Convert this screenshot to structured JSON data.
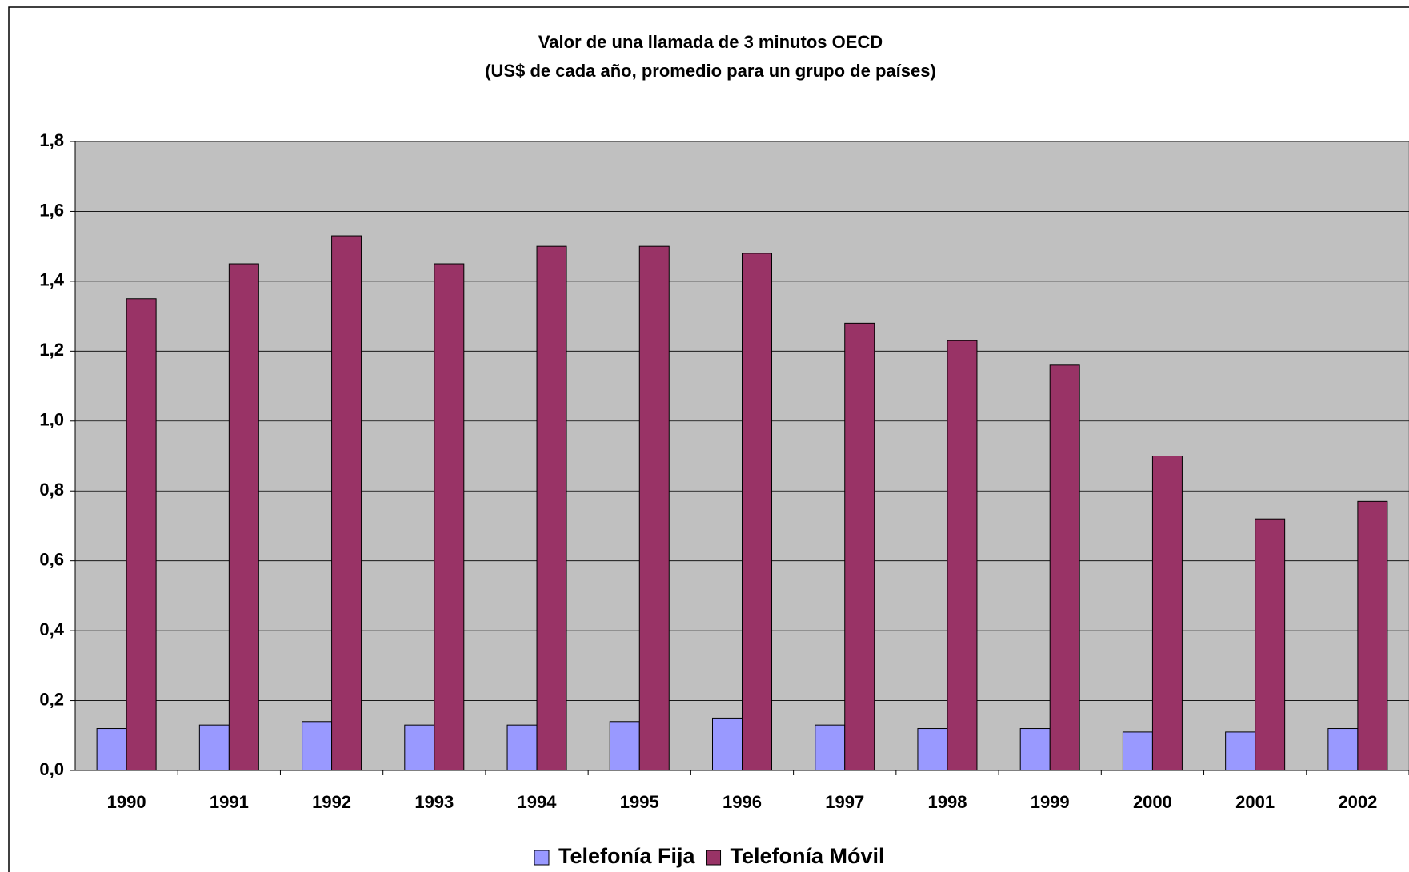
{
  "chart_data": {
    "type": "bar",
    "title": "Valor de una llamada de 3 minutos OECD",
    "subtitle": "(US$ de cada año, promedio para un grupo de países)",
    "categories": [
      "1990",
      "1991",
      "1992",
      "1993",
      "1994",
      "1995",
      "1996",
      "1997",
      "1998",
      "1999",
      "2000",
      "2001",
      "2002"
    ],
    "series": [
      {
        "name": "Telefonía Fija",
        "color": "#9999ff",
        "values": [
          0.12,
          0.13,
          0.14,
          0.13,
          0.13,
          0.14,
          0.15,
          0.13,
          0.12,
          0.12,
          0.11,
          0.11,
          0.12
        ]
      },
      {
        "name": "Telefonía Móvil",
        "color": "#993366",
        "values": [
          1.35,
          1.45,
          1.53,
          1.45,
          1.5,
          1.5,
          1.48,
          1.28,
          1.23,
          1.16,
          0.9,
          0.72,
          0.77
        ]
      }
    ],
    "ylim": [
      0,
      1.8
    ],
    "yticks": [
      {
        "value": 0,
        "label": "0,0"
      },
      {
        "value": 0.2,
        "label": "0,2"
      },
      {
        "value": 0.4,
        "label": "0,4"
      },
      {
        "value": 0.6,
        "label": "0,6"
      },
      {
        "value": 0.8,
        "label": "0,8"
      },
      {
        "value": 1.0,
        "label": "1,0"
      },
      {
        "value": 1.2,
        "label": "1,2"
      },
      {
        "value": 1.4,
        "label": "1,4"
      },
      {
        "value": 1.6,
        "label": "1,6"
      },
      {
        "value": 1.8,
        "label": "1,8"
      }
    ],
    "grid": true,
    "legend": "bottom",
    "plot_background": "#c0c0c0"
  }
}
